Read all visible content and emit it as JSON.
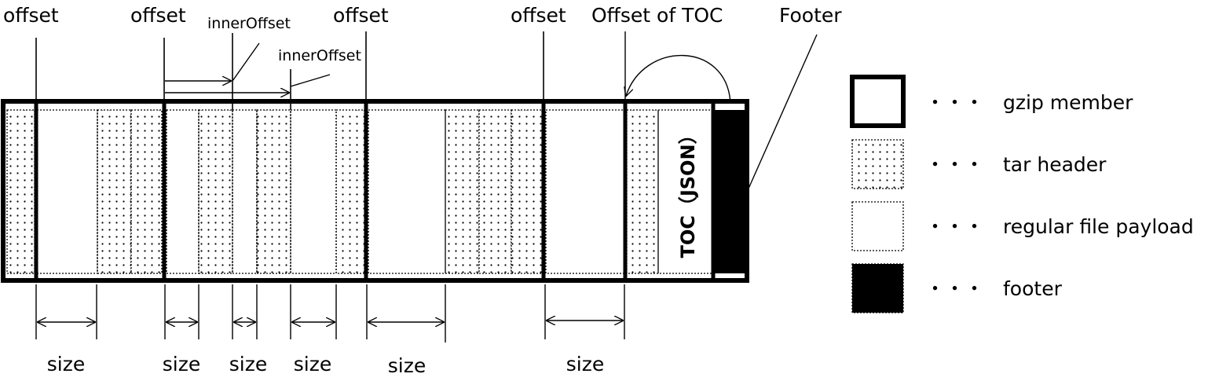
{
  "labels": {
    "offset": "offset",
    "inner_offset": "innerOffset",
    "offset_of_toc": "Offset of TOC",
    "footer": "Footer",
    "size": "size",
    "toc": "TOC（JSON）"
  },
  "legend": {
    "dots": "・・・",
    "items": [
      {
        "kind": "gzip-member",
        "label": "gzip member"
      },
      {
        "kind": "tar-header",
        "label": "tar header"
      },
      {
        "kind": "regular-file-payload",
        "label": "regular file payload"
      },
      {
        "kind": "footer",
        "label": "footer"
      }
    ]
  },
  "colors": {
    "stroke": "#000000",
    "background": "#ffffff",
    "footer_fill": "#000000"
  }
}
